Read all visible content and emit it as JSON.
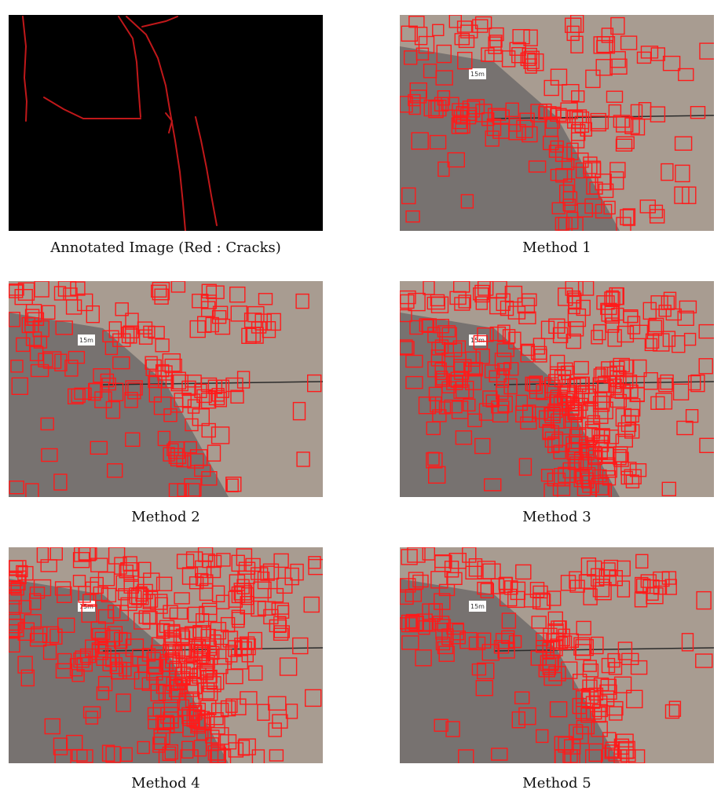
{
  "figure": {
    "panels": [
      {
        "id": "annotated",
        "caption": "Annotated Image (Red : Cracks)",
        "kind": "mask"
      },
      {
        "id": "method1",
        "caption": "Method 1",
        "kind": "detections",
        "box_density": 0.22,
        "scale_label": "15m"
      },
      {
        "id": "method2",
        "caption": "Method 2",
        "kind": "detections",
        "box_density": 0.18,
        "scale_label": "15m"
      },
      {
        "id": "method3",
        "caption": "Method 3",
        "kind": "detections",
        "box_density": 0.55,
        "scale_label": "15m"
      },
      {
        "id": "method4",
        "caption": "Method 4",
        "kind": "detections",
        "box_density": 0.62,
        "scale_label": "15m"
      },
      {
        "id": "method5",
        "caption": "Method 5",
        "kind": "detections",
        "box_density": 0.28,
        "scale_label": "15m"
      }
    ],
    "colors": {
      "crack": "#c0181a",
      "box": "#ff1a1a",
      "mask_bg": "#000000",
      "pavement_light": "#a89c91",
      "pavement_dark": "#6f6b6a"
    }
  }
}
